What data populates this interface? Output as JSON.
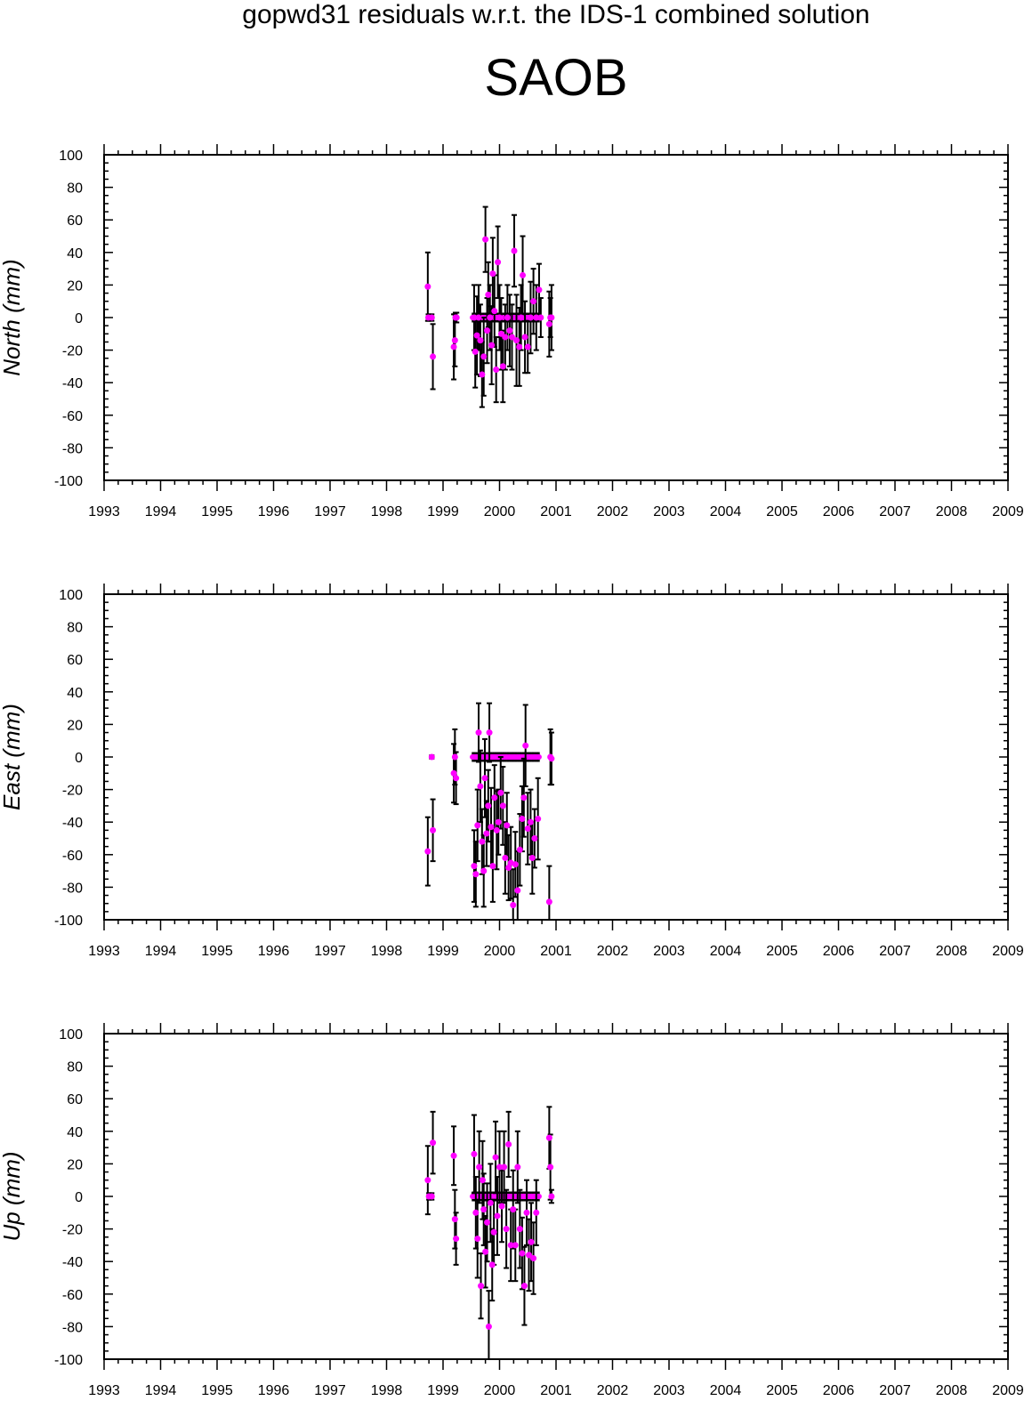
{
  "title": "gopwd31 residuals w.r.t. the IDS-1 combined solution",
  "subtitle": "SAOB",
  "colors": {
    "points": "#ff00ff",
    "errorbars": "#000000",
    "axes": "#000000"
  },
  "chart_data": [
    {
      "type": "scatter",
      "ylabel": "North (mm)",
      "xlim": [
        1993,
        2009
      ],
      "ylim": [
        -100,
        100
      ],
      "xticks": [
        1993,
        1994,
        1995,
        1996,
        1997,
        1998,
        1999,
        2000,
        2001,
        2002,
        2003,
        2004,
        2005,
        2006,
        2007,
        2008,
        2009
      ],
      "yticks": [
        100,
        80,
        60,
        40,
        20,
        0,
        -20,
        -40,
        -60,
        -80,
        -100
      ],
      "points": [
        {
          "x": 1998.73,
          "y": 19,
          "err": 21
        },
        {
          "x": 1998.74,
          "y": 0,
          "err": 2
        },
        {
          "x": 1998.8,
          "y": 0,
          "err": 2
        },
        {
          "x": 1998.82,
          "y": -24,
          "err": 20
        },
        {
          "x": 1999.19,
          "y": -18,
          "err": 20
        },
        {
          "x": 1999.21,
          "y": -14,
          "err": 16
        },
        {
          "x": 1999.22,
          "y": 0,
          "err": 3
        },
        {
          "x": 1999.24,
          "y": 0,
          "err": 3
        },
        {
          "x": 1999.55,
          "y": 0,
          "err": 20
        },
        {
          "x": 1999.57,
          "y": -21,
          "err": 22
        },
        {
          "x": 1999.6,
          "y": -11,
          "err": 24
        },
        {
          "x": 1999.63,
          "y": 0,
          "err": 20
        },
        {
          "x": 1999.66,
          "y": -14,
          "err": 22
        },
        {
          "x": 1999.69,
          "y": -35,
          "err": 20
        },
        {
          "x": 1999.72,
          "y": -24,
          "err": 24
        },
        {
          "x": 1999.75,
          "y": 48,
          "err": 20
        },
        {
          "x": 1999.78,
          "y": -8,
          "err": 20
        },
        {
          "x": 1999.8,
          "y": 14,
          "err": 20
        },
        {
          "x": 1999.83,
          "y": 0,
          "err": 20
        },
        {
          "x": 1999.86,
          "y": -17,
          "err": 24
        },
        {
          "x": 1999.88,
          "y": 27,
          "err": 22
        },
        {
          "x": 1999.91,
          "y": 4,
          "err": 22
        },
        {
          "x": 1999.94,
          "y": -32,
          "err": 20
        },
        {
          "x": 1999.97,
          "y": 34,
          "err": 22
        },
        {
          "x": 2000.0,
          "y": 0,
          "err": 20
        },
        {
          "x": 2000.03,
          "y": -10,
          "err": 22
        },
        {
          "x": 2000.06,
          "y": -30,
          "err": 22
        },
        {
          "x": 2000.1,
          "y": -12,
          "err": 20
        },
        {
          "x": 2000.14,
          "y": 0,
          "err": 20
        },
        {
          "x": 2000.18,
          "y": -8,
          "err": 22
        },
        {
          "x": 2000.22,
          "y": -12,
          "err": 20
        },
        {
          "x": 2000.26,
          "y": 41,
          "err": 22
        },
        {
          "x": 2000.3,
          "y": -14,
          "err": 28
        },
        {
          "x": 2000.35,
          "y": -18,
          "err": 24
        },
        {
          "x": 2000.38,
          "y": 0,
          "err": 20
        },
        {
          "x": 2000.41,
          "y": 26,
          "err": 24
        },
        {
          "x": 2000.45,
          "y": -12,
          "err": 22
        },
        {
          "x": 2000.5,
          "y": -18,
          "err": 16
        },
        {
          "x": 2000.55,
          "y": 0,
          "err": 22
        },
        {
          "x": 2000.6,
          "y": 10,
          "err": 20
        },
        {
          "x": 2000.65,
          "y": 0,
          "err": 20
        },
        {
          "x": 2000.7,
          "y": 17,
          "err": 16
        },
        {
          "x": 2000.73,
          "y": 0,
          "err": 12
        },
        {
          "x": 2000.88,
          "y": -4,
          "err": 20
        },
        {
          "x": 2000.9,
          "y": 0,
          "err": 12
        },
        {
          "x": 2000.92,
          "y": 0,
          "err": 20
        }
      ],
      "zero_band": [
        1999.52,
        2000.7
      ]
    },
    {
      "type": "scatter",
      "ylabel": "East (mm)",
      "xlim": [
        1993,
        2009
      ],
      "ylim": [
        -100,
        100
      ],
      "xticks": [
        1993,
        1994,
        1995,
        1996,
        1997,
        1998,
        1999,
        2000,
        2001,
        2002,
        2003,
        2004,
        2005,
        2006,
        2007,
        2008,
        2009
      ],
      "yticks": [
        100,
        80,
        60,
        40,
        20,
        0,
        -20,
        -40,
        -60,
        -80,
        -100
      ],
      "points": [
        {
          "x": 1998.73,
          "y": -58,
          "err": 21
        },
        {
          "x": 1998.8,
          "y": 0,
          "err": 1
        },
        {
          "x": 1998.82,
          "y": -45,
          "err": 19
        },
        {
          "x": 1999.19,
          "y": -10,
          "err": 18
        },
        {
          "x": 1999.21,
          "y": 0,
          "err": 17
        },
        {
          "x": 1999.23,
          "y": -13,
          "err": 16
        },
        {
          "x": 1999.55,
          "y": -67,
          "err": 22
        },
        {
          "x": 1999.58,
          "y": -72,
          "err": 20
        },
        {
          "x": 1999.61,
          "y": -42,
          "err": 22
        },
        {
          "x": 1999.63,
          "y": 15,
          "err": 18
        },
        {
          "x": 1999.66,
          "y": -18,
          "err": 22
        },
        {
          "x": 1999.69,
          "y": -52,
          "err": 20
        },
        {
          "x": 1999.72,
          "y": -70,
          "err": 22
        },
        {
          "x": 1999.74,
          "y": -13,
          "err": 24
        },
        {
          "x": 1999.77,
          "y": -47,
          "err": 20
        },
        {
          "x": 1999.8,
          "y": -30,
          "err": 22
        },
        {
          "x": 1999.82,
          "y": 15,
          "err": 18
        },
        {
          "x": 1999.85,
          "y": -43,
          "err": 24
        },
        {
          "x": 1999.88,
          "y": -67,
          "err": 22
        },
        {
          "x": 1999.91,
          "y": -25,
          "err": 20
        },
        {
          "x": 1999.95,
          "y": -45,
          "err": 24
        },
        {
          "x": 1999.98,
          "y": -40,
          "err": 20
        },
        {
          "x": 2000.02,
          "y": -22,
          "err": 22
        },
        {
          "x": 2000.06,
          "y": -30,
          "err": 24
        },
        {
          "x": 2000.1,
          "y": -62,
          "err": 22
        },
        {
          "x": 2000.13,
          "y": -42,
          "err": 20
        },
        {
          "x": 2000.16,
          "y": -68,
          "err": 20
        },
        {
          "x": 2000.2,
          "y": -65,
          "err": 22
        },
        {
          "x": 2000.24,
          "y": -91,
          "err": 22
        },
        {
          "x": 2000.28,
          "y": -66,
          "err": 20
        },
        {
          "x": 2000.32,
          "y": -82,
          "err": 24
        },
        {
          "x": 2000.36,
          "y": -57,
          "err": 22
        },
        {
          "x": 2000.4,
          "y": -38,
          "err": 20
        },
        {
          "x": 2000.43,
          "y": -25,
          "err": 24
        },
        {
          "x": 2000.46,
          "y": 7,
          "err": 25
        },
        {
          "x": 2000.5,
          "y": -44,
          "err": 22
        },
        {
          "x": 2000.55,
          "y": -40,
          "err": 20
        },
        {
          "x": 2000.58,
          "y": -62,
          "err": 22
        },
        {
          "x": 2000.62,
          "y": -50,
          "err": 18
        },
        {
          "x": 2000.68,
          "y": -38,
          "err": 25
        },
        {
          "x": 2000.88,
          "y": -89,
          "err": 22
        },
        {
          "x": 2000.9,
          "y": 0,
          "err": 17
        },
        {
          "x": 2000.92,
          "y": -1,
          "err": 16
        }
      ],
      "zero_band": [
        1999.52,
        2000.7
      ]
    },
    {
      "type": "scatter",
      "ylabel": "Up (mm)",
      "xlim": [
        1993,
        2009
      ],
      "ylim": [
        -100,
        100
      ],
      "xticks": [
        1993,
        1994,
        1995,
        1996,
        1997,
        1998,
        1999,
        2000,
        2001,
        2002,
        2003,
        2004,
        2005,
        2006,
        2007,
        2008,
        2009
      ],
      "yticks": [
        100,
        80,
        60,
        40,
        20,
        0,
        -20,
        -40,
        -60,
        -80,
        -100
      ],
      "points": [
        {
          "x": 1998.73,
          "y": 10,
          "err": 21
        },
        {
          "x": 1998.75,
          "y": 0,
          "err": 2
        },
        {
          "x": 1998.8,
          "y": 0,
          "err": 2
        },
        {
          "x": 1998.82,
          "y": 33,
          "err": 19
        },
        {
          "x": 1999.19,
          "y": 25,
          "err": 18
        },
        {
          "x": 1999.21,
          "y": -14,
          "err": 18
        },
        {
          "x": 1999.23,
          "y": -26,
          "err": 16
        },
        {
          "x": 1999.55,
          "y": 26,
          "err": 24
        },
        {
          "x": 1999.58,
          "y": -10,
          "err": 22
        },
        {
          "x": 1999.61,
          "y": -26,
          "err": 24
        },
        {
          "x": 1999.64,
          "y": 18,
          "err": 22
        },
        {
          "x": 1999.67,
          "y": -55,
          "err": 20
        },
        {
          "x": 1999.7,
          "y": 10,
          "err": 24
        },
        {
          "x": 1999.72,
          "y": -8,
          "err": 22
        },
        {
          "x": 1999.75,
          "y": -34,
          "err": 22
        },
        {
          "x": 1999.78,
          "y": -16,
          "err": 24
        },
        {
          "x": 1999.81,
          "y": -80,
          "err": 22
        },
        {
          "x": 1999.84,
          "y": -4,
          "err": 24
        },
        {
          "x": 1999.87,
          "y": -42,
          "err": 22
        },
        {
          "x": 1999.9,
          "y": -22,
          "err": 20
        },
        {
          "x": 1999.93,
          "y": 24,
          "err": 22
        },
        {
          "x": 1999.96,
          "y": -12,
          "err": 24
        },
        {
          "x": 2000.0,
          "y": 18,
          "err": 22
        },
        {
          "x": 2000.04,
          "y": -6,
          "err": 22
        },
        {
          "x": 2000.08,
          "y": 18,
          "err": 22
        },
        {
          "x": 2000.12,
          "y": -20,
          "err": 24
        },
        {
          "x": 2000.16,
          "y": 32,
          "err": 20
        },
        {
          "x": 2000.2,
          "y": -30,
          "err": 22
        },
        {
          "x": 2000.24,
          "y": -8,
          "err": 24
        },
        {
          "x": 2000.28,
          "y": -30,
          "err": 22
        },
        {
          "x": 2000.32,
          "y": 18,
          "err": 22
        },
        {
          "x": 2000.36,
          "y": -20,
          "err": 24
        },
        {
          "x": 2000.4,
          "y": -35,
          "err": 22
        },
        {
          "x": 2000.44,
          "y": -55,
          "err": 24
        },
        {
          "x": 2000.48,
          "y": -10,
          "err": 20
        },
        {
          "x": 2000.52,
          "y": -36,
          "err": 22
        },
        {
          "x": 2000.56,
          "y": -28,
          "err": 24
        },
        {
          "x": 2000.6,
          "y": -38,
          "err": 22
        },
        {
          "x": 2000.65,
          "y": -10,
          "err": 20
        },
        {
          "x": 2000.88,
          "y": 36,
          "err": 19
        },
        {
          "x": 2000.9,
          "y": 18,
          "err": 20
        },
        {
          "x": 2000.92,
          "y": 0,
          "err": 4
        }
      ],
      "zero_band": [
        1999.52,
        2000.7
      ]
    }
  ]
}
